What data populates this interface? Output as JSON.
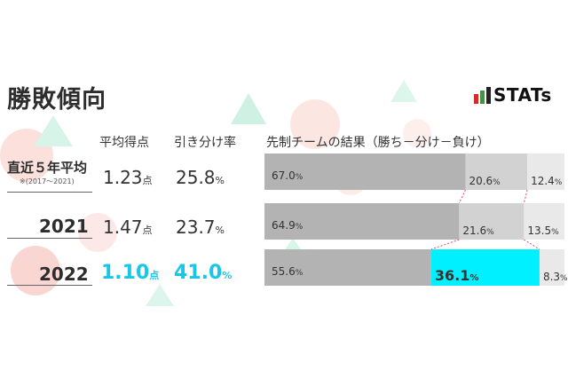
{
  "title": "勝敗傾向",
  "logo": {
    "text": "STATs",
    "colors": [
      "#d62b2b",
      "#3a9a3a",
      "#222222"
    ]
  },
  "headers": {
    "avg_points": "平均得点",
    "draw_rate": "引き分け率",
    "result": "先制チームの結果（勝ち－分け－負け）"
  },
  "rows": [
    {
      "label": "直近５年平均",
      "sublabel": "※(2017～2021)",
      "avg_points": "1.23",
      "avg_unit": "点",
      "draw_rate": "25.8",
      "draw_unit": "%",
      "highlight": false
    },
    {
      "label": "2021",
      "sublabel": "",
      "avg_points": "1.47",
      "avg_unit": "点",
      "draw_rate": "23.7",
      "draw_unit": "%",
      "highlight": false
    },
    {
      "label": "2022",
      "sublabel": "",
      "avg_points": "1.10",
      "avg_unit": "点",
      "draw_rate": "41.0",
      "draw_unit": "%",
      "highlight": true
    }
  ],
  "chart_data": {
    "type": "bar",
    "orientation": "horizontal-stacked-100",
    "categories": [
      "直近５年平均",
      "2021",
      "2022"
    ],
    "series": [
      {
        "name": "勝ち",
        "values": [
          67.0,
          64.9,
          55.6
        ],
        "labels": [
          "67.0",
          "64.9",
          "55.6"
        ],
        "color": "#b3b3b3"
      },
      {
        "name": "分け",
        "values": [
          20.6,
          21.6,
          36.1
        ],
        "labels": [
          "20.6",
          "21.6",
          "36.1"
        ],
        "color": "#d2d2d2",
        "highlight_color": "#00f0ff"
      },
      {
        "name": "負け",
        "values": [
          12.4,
          13.5,
          8.3
        ],
        "labels": [
          "12.4",
          "13.5",
          "8.3"
        ],
        "color": "#e9e9e9"
      }
    ],
    "unit": "%",
    "xlim": [
      0,
      100
    ],
    "grid": false,
    "connector_color": "#e8406a"
  }
}
